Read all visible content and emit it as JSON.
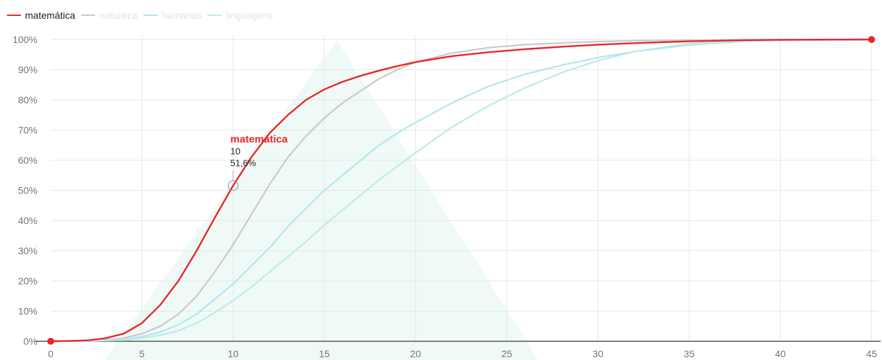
{
  "chart_data": {
    "type": "line",
    "title": "",
    "xlabel": "",
    "ylabel": "",
    "xlim": [
      0,
      45
    ],
    "ylim": [
      0,
      100
    ],
    "x_ticks": [
      0,
      5,
      10,
      15,
      20,
      25,
      30,
      35,
      40,
      45
    ],
    "y_ticks": [
      0,
      10,
      20,
      30,
      40,
      50,
      60,
      70,
      80,
      90,
      100
    ],
    "y_tick_labels": [
      "0%",
      "10%",
      "20%",
      "30%",
      "40%",
      "50%",
      "60%",
      "70%",
      "80%",
      "90%",
      "100%"
    ],
    "grid": true,
    "legend_position": "top-left",
    "series": [
      {
        "name": "matemática",
        "color": "#e8262a",
        "active": true,
        "x": [
          0,
          1,
          2,
          3,
          4,
          5,
          6,
          7,
          8,
          9,
          10,
          11,
          12,
          13,
          14,
          15,
          16,
          17,
          18,
          19,
          20,
          22,
          24,
          26,
          28,
          30,
          32,
          35,
          38,
          40,
          45
        ],
        "y": [
          0,
          0.1,
          0.3,
          1,
          2.5,
          6,
          12,
          20,
          30,
          41,
          51.6,
          61,
          69,
          75,
          80,
          83.5,
          86,
          88,
          89.7,
          91.2,
          92.5,
          94.5,
          95.8,
          96.8,
          97.6,
          98.3,
          98.8,
          99.4,
          99.8,
          99.9,
          100
        ]
      },
      {
        "name": "natureza",
        "color": "#c9c9c9",
        "active": false,
        "x": [
          0,
          2,
          4,
          5,
          6,
          7,
          8,
          9,
          10,
          11,
          12,
          13,
          14,
          15,
          16,
          17,
          18,
          19,
          20,
          22,
          24,
          26,
          28,
          30,
          32,
          35,
          38,
          40,
          45
        ],
        "y": [
          0,
          0.1,
          1,
          2.5,
          5,
          9,
          15,
          23,
          32,
          42,
          52,
          61,
          68,
          74,
          79,
          83,
          87,
          90,
          92.5,
          95.5,
          97.3,
          98.3,
          98.9,
          99.3,
          99.6,
          99.8,
          99.9,
          100,
          100
        ]
      },
      {
        "name": "humanas",
        "color": "#b3e5f2",
        "active": false,
        "x": [
          0,
          2,
          4,
          5,
          6,
          7,
          8,
          9,
          10,
          11,
          12,
          13,
          14,
          15,
          16,
          17,
          18,
          19,
          20,
          22,
          24,
          26,
          28,
          30,
          32,
          35,
          38,
          40,
          45
        ],
        "y": [
          0,
          0.1,
          0.6,
          1.5,
          3,
          5.5,
          9,
          14,
          19,
          25,
          31,
          38,
          44,
          50,
          55,
          60,
          65,
          69,
          72.5,
          79,
          84.5,
          88.5,
          91.5,
          94,
          96,
          98.2,
          99.4,
          99.8,
          100
        ]
      },
      {
        "name": "linguagens",
        "color": "#bdeaea",
        "active": false,
        "x": [
          0,
          2,
          4,
          5,
          6,
          7,
          8,
          9,
          10,
          11,
          12,
          13,
          14,
          15,
          16,
          17,
          18,
          19,
          20,
          22,
          24,
          26,
          28,
          30,
          32,
          35,
          38,
          40,
          45
        ],
        "y": [
          0,
          0.1,
          0.4,
          1,
          2,
          3.5,
          6,
          9.5,
          13.5,
          18,
          23,
          28,
          33,
          38.5,
          43.5,
          48.5,
          53.5,
          58,
          62.5,
          71,
          78,
          84,
          89,
          93,
          96,
          98.7,
          99.6,
          99.9,
          100
        ]
      }
    ],
    "markers": [
      {
        "series": "matemática",
        "x": 0,
        "y": 0
      },
      {
        "series": "matemática",
        "x": 45,
        "y": 100
      }
    ],
    "tooltip": {
      "series": "matemática",
      "x_label": "10",
      "value_label": "51,6%",
      "x": 10,
      "y": 51.6
    }
  }
}
